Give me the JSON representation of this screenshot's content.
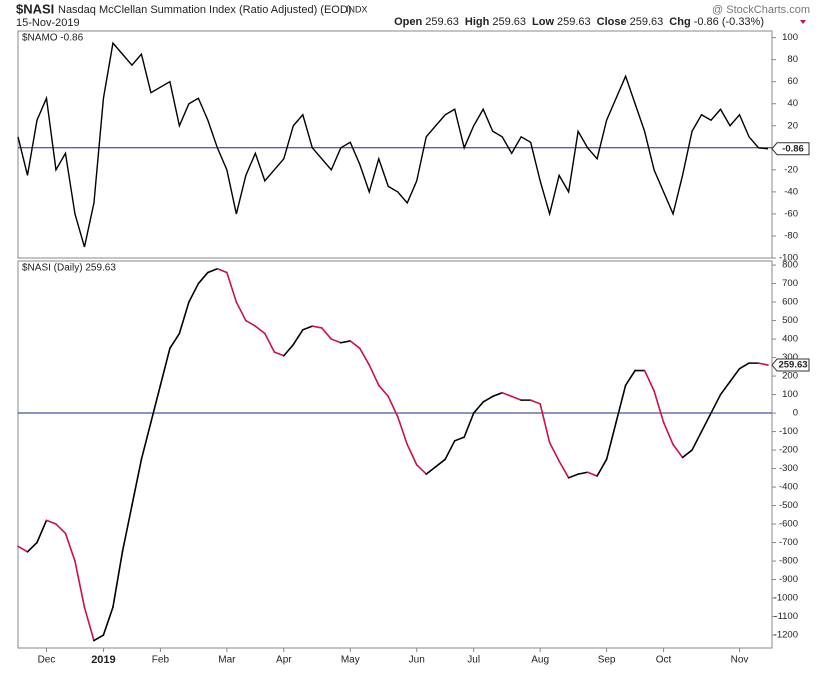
{
  "header": {
    "symbol": "$NASI",
    "name": "Nasdaq McClellan Summation Index (Ratio Adjusted) (EOD)",
    "exchange": "INDX",
    "date": "15-Nov-2019",
    "source": "@ StockCharts.com",
    "quote": [
      {
        "label": "Open",
        "value": "259.63"
      },
      {
        "label": "High",
        "value": "259.63"
      },
      {
        "label": "Low",
        "value": "259.63"
      },
      {
        "label": "Close",
        "value": "259.63"
      },
      {
        "label": "Chg",
        "value": "-0.86 (-0.33%)"
      }
    ]
  },
  "chart_data": [
    {
      "type": "line",
      "legend": "$NAMO -0.86",
      "color": "#000000",
      "zero_color": "#1a2a80",
      "last_value_label": "-0.86",
      "values": [
        10,
        -25,
        25,
        45,
        -20,
        -5,
        -60,
        -90,
        -50,
        45,
        95,
        85,
        75,
        85,
        50,
        55,
        60,
        20,
        40,
        45,
        25,
        0,
        -20,
        -60,
        -25,
        -5,
        -30,
        -20,
        -10,
        20,
        30,
        0,
        -10,
        -20,
        0,
        5,
        -15,
        -40,
        -10,
        -35,
        -40,
        -50,
        -30,
        10,
        20,
        30,
        35,
        0,
        20,
        35,
        15,
        10,
        -5,
        10,
        5,
        -30,
        -60,
        -25,
        -40,
        15,
        0,
        -10,
        25,
        45,
        65,
        40,
        15,
        -20,
        -40,
        -60,
        -25,
        15,
        30,
        25,
        35,
        20,
        30,
        10,
        0,
        -0.86
      ],
      "ylim": [
        -100,
        106
      ],
      "yticks": [
        100,
        80,
        60,
        40,
        20,
        0,
        -20,
        -40,
        -60,
        -80,
        -100
      ]
    },
    {
      "type": "direction-line",
      "legend": "$NASI (Daily) 259.63",
      "up_color": "#000000",
      "down_color": "#cc1144",
      "zero_color": "#1a2a80",
      "last_value_label": "259.63",
      "categories": [
        null,
        null,
        null,
        "Dec",
        null,
        null,
        null,
        null,
        null,
        "2019",
        null,
        null,
        null,
        null,
        null,
        "Feb",
        null,
        null,
        null,
        null,
        null,
        null,
        "Mar",
        null,
        null,
        null,
        null,
        null,
        "Apr",
        null,
        null,
        null,
        null,
        null,
        null,
        "May",
        null,
        null,
        null,
        null,
        null,
        null,
        "Jun",
        null,
        null,
        null,
        null,
        null,
        "Jul",
        null,
        null,
        null,
        null,
        null,
        null,
        "Aug",
        null,
        null,
        null,
        null,
        null,
        null,
        "Sep",
        null,
        null,
        null,
        null,
        null,
        "Oct",
        null,
        null,
        null,
        null,
        null,
        null,
        null,
        "Nov",
        null,
        null,
        null
      ],
      "values": [
        -720,
        -750,
        -700,
        -580,
        -600,
        -650,
        -800,
        -1050,
        -1230,
        -1200,
        -1050,
        -750,
        -500,
        -250,
        -50,
        150,
        350,
        430,
        600,
        700,
        760,
        780,
        760,
        600,
        500,
        470,
        430,
        330,
        310,
        370,
        450,
        470,
        460,
        400,
        380,
        390,
        350,
        260,
        150,
        90,
        -20,
        -170,
        -280,
        -330,
        -290,
        -250,
        -150,
        -130,
        0,
        60,
        90,
        110,
        90,
        70,
        70,
        50,
        -160,
        -260,
        -350,
        -330,
        -320,
        -340,
        -250,
        -50,
        150,
        230,
        230,
        120,
        -50,
        -170,
        -240,
        -200,
        -100,
        0,
        100,
        170,
        240,
        270,
        270,
        259.63
      ],
      "ylim": [
        -1270,
        822
      ],
      "yticks": [
        800,
        700,
        600,
        500,
        400,
        300,
        200,
        100,
        0,
        -100,
        -200,
        -300,
        -400,
        -500,
        -600,
        -700,
        -800,
        -900,
        -1000,
        -1100,
        -1200
      ]
    }
  ]
}
